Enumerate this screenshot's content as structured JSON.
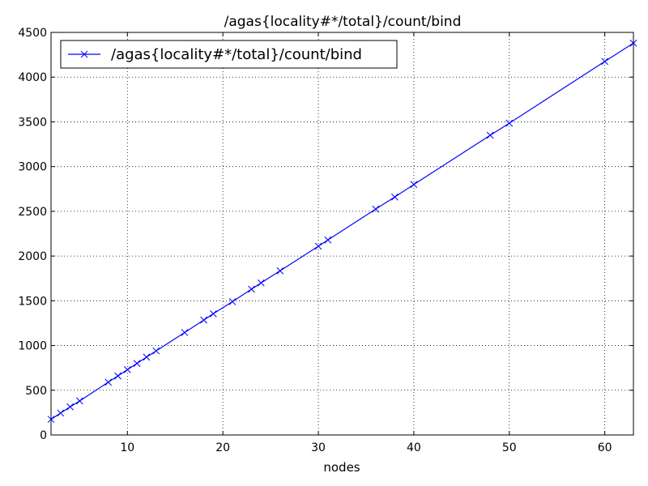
{
  "chart_data": {
    "type": "line",
    "title": "/agas{locality#*/total}/count/bind",
    "xlabel": "nodes",
    "ylabel": "",
    "xlim": [
      2,
      63
    ],
    "ylim": [
      0,
      4500
    ],
    "xticks": [
      10,
      20,
      30,
      40,
      50,
      60
    ],
    "yticks": [
      0,
      500,
      1000,
      1500,
      2000,
      2500,
      3000,
      3500,
      4000,
      4500
    ],
    "grid": true,
    "legend_position": "top-left",
    "colors": {
      "series": "#0000ff"
    },
    "series": [
      {
        "name": "/agas{locality#*/total}/count/bind",
        "marker": "x",
        "x": [
          2,
          3,
          4,
          5,
          8,
          9,
          10,
          11,
          12,
          13,
          16,
          18,
          19,
          21,
          23,
          24,
          26,
          30,
          31,
          36,
          38,
          40,
          48,
          50,
          60,
          63
        ],
        "y": [
          175,
          245,
          315,
          380,
          590,
          660,
          730,
          800,
          870,
          940,
          1145,
          1285,
          1355,
          1490,
          1630,
          1700,
          1835,
          2110,
          2180,
          2525,
          2660,
          2800,
          3350,
          3485,
          4175,
          4380
        ]
      }
    ]
  }
}
